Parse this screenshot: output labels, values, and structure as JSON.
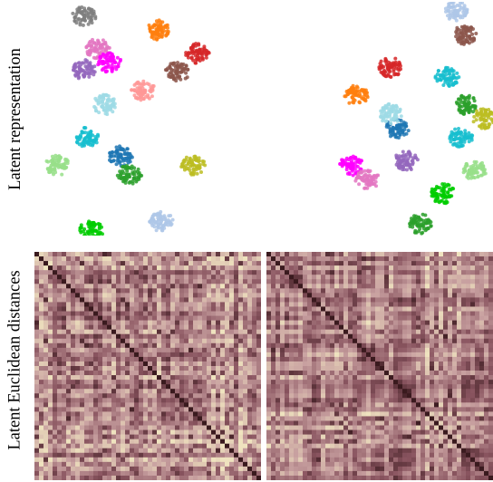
{
  "figure": {
    "row_labels": [
      "Latent representation",
      "Latent Euclidean distances"
    ]
  },
  "chart_data": [
    {
      "type": "scatter",
      "panel": "latent-representation-left",
      "axes": "none",
      "clusters": [
        {
          "x": 0.55,
          "y": 0.88,
          "color": "#ff7f0e"
        },
        {
          "x": 0.72,
          "y": 0.78,
          "color": "#d62728"
        },
        {
          "x": 0.63,
          "y": 0.7,
          "color": "#8c564b"
        },
        {
          "x": 0.28,
          "y": 0.8,
          "color": "#e377c2"
        },
        {
          "x": 0.33,
          "y": 0.74,
          "color": "#ff00ff"
        },
        {
          "x": 0.22,
          "y": 0.71,
          "color": "#9467bd"
        },
        {
          "x": 0.48,
          "y": 0.62,
          "color": "#ff9896"
        },
        {
          "x": 0.23,
          "y": 0.42,
          "color": "#17becf"
        },
        {
          "x": 0.38,
          "y": 0.34,
          "color": "#1f77b4"
        },
        {
          "x": 0.42,
          "y": 0.26,
          "color": "#2ca02c"
        },
        {
          "x": 0.7,
          "y": 0.3,
          "color": "#bcbd22"
        },
        {
          "x": 0.1,
          "y": 0.3,
          "color": "#98df8a"
        },
        {
          "x": 0.56,
          "y": 0.06,
          "color": "#aec7e8"
        },
        {
          "x": 0.25,
          "y": 0.02,
          "color": "#00cc00"
        },
        {
          "x": 0.22,
          "y": 0.94,
          "color": "#7f7f7f"
        },
        {
          "x": 0.31,
          "y": 0.56,
          "color": "#9edae5"
        }
      ]
    },
    {
      "type": "scatter",
      "panel": "latent-representation-right",
      "axes": "none",
      "clusters": [
        {
          "x": 0.55,
          "y": 0.72,
          "color": "#d62728"
        },
        {
          "x": 0.4,
          "y": 0.6,
          "color": "#ff7f0e"
        },
        {
          "x": 0.58,
          "y": 0.46,
          "color": "#1f77b4"
        },
        {
          "x": 0.38,
          "y": 0.3,
          "color": "#ff00ff"
        },
        {
          "x": 0.45,
          "y": 0.24,
          "color": "#e377c2"
        },
        {
          "x": 0.62,
          "y": 0.32,
          "color": "#9467bd"
        },
        {
          "x": 0.8,
          "y": 0.68,
          "color": "#17becf"
        },
        {
          "x": 0.88,
          "y": 0.56,
          "color": "#2ca02c"
        },
        {
          "x": 0.96,
          "y": 0.5,
          "color": "#bcbd22"
        },
        {
          "x": 0.86,
          "y": 0.42,
          "color": "#17becf"
        },
        {
          "x": 0.92,
          "y": 0.28,
          "color": "#98df8a"
        },
        {
          "x": 0.78,
          "y": 0.18,
          "color": "#00cc00"
        },
        {
          "x": 0.84,
          "y": 0.96,
          "color": "#aec7e8"
        },
        {
          "x": 0.88,
          "y": 0.86,
          "color": "#8c564b"
        },
        {
          "x": 0.55,
          "y": 0.52,
          "color": "#9edae5"
        },
        {
          "x": 0.68,
          "y": 0.05,
          "color": "#2ca02c"
        }
      ]
    },
    {
      "type": "heatmap",
      "panel": "latent-euclidean-distances-left",
      "axes": "none",
      "colormap": [
        "#3a1a1e",
        "#8a5560",
        "#c8a0a0",
        "#efe3bf"
      ],
      "diagonal": "dark"
    },
    {
      "type": "heatmap",
      "panel": "latent-euclidean-distances-right",
      "axes": "none",
      "colormap": [
        "#3a1a1e",
        "#8a5560",
        "#c8a0a0",
        "#efe3bf"
      ],
      "diagonal": "dark"
    }
  ]
}
